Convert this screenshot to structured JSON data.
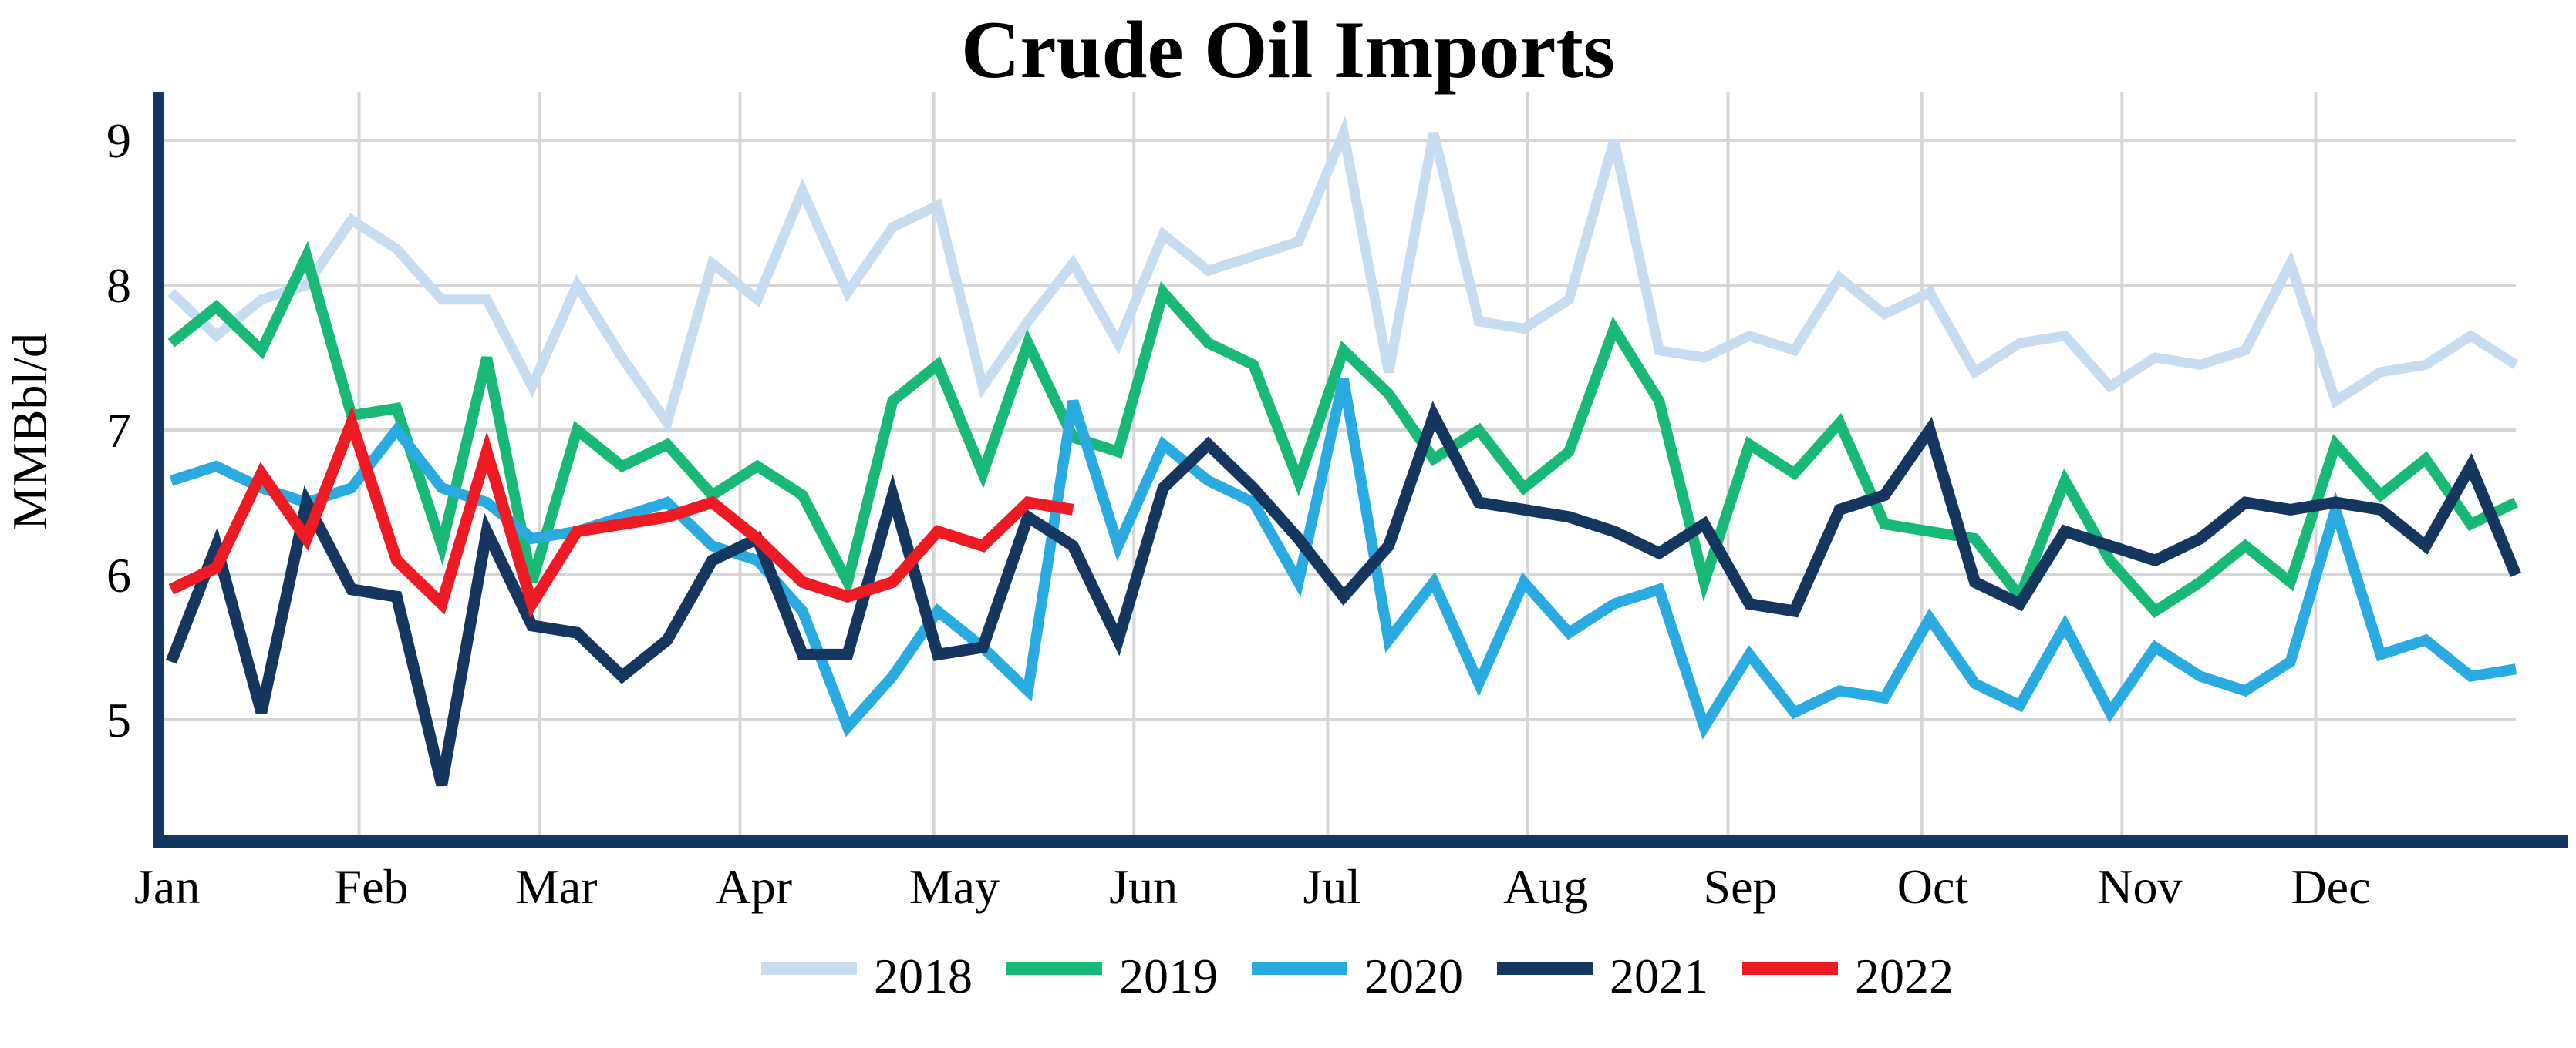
{
  "title": "Crude Oil Imports",
  "y_axis": {
    "label": "MMBbl/d",
    "ticks": [
      9,
      8,
      7,
      6,
      5
    ]
  },
  "x_axis": {
    "months": [
      "Jan",
      "Feb",
      "Mar",
      "Apr",
      "May",
      "Jun",
      "Jul",
      "Aug",
      "Sep",
      "Oct",
      "Nov",
      "Dec"
    ]
  },
  "legend": {
    "entries": [
      "2018",
      "2019",
      "2020",
      "2021",
      "2022"
    ]
  },
  "colors": {
    "series_2018": "#c6dcf1",
    "series_2019": "#18b877",
    "series_2020": "#29abe2",
    "series_2021": "#15365f",
    "series_2022": "#ee1b24",
    "axis": "#15365f",
    "grid": "#d6d6d6",
    "background": "#ffffff"
  },
  "chart_data": {
    "type": "line",
    "title": "Crude Oil Imports",
    "xlabel": "",
    "ylabel": "MMBbl/d",
    "ylim": [
      4.2,
      9.35
    ],
    "yticks": [
      5,
      6,
      7,
      8,
      9
    ],
    "grid": true,
    "legend_position": "bottom",
    "x_unit": "weekly points, Jan through Dec",
    "x_month_labels": [
      "Jan",
      "Feb",
      "Mar",
      "Apr",
      "May",
      "Jun",
      "Jul",
      "Aug",
      "Sep",
      "Oct",
      "Nov",
      "Dec"
    ],
    "series": [
      {
        "name": "2018",
        "color": "#c6dcf1",
        "values": [
          7.95,
          7.65,
          7.9,
          8.0,
          8.45,
          8.25,
          7.9,
          7.9,
          7.3,
          8.0,
          7.5,
          7.05,
          8.15,
          7.9,
          8.65,
          7.95,
          8.4,
          8.55,
          7.3,
          7.75,
          8.15,
          7.6,
          8.35,
          8.1,
          8.2,
          8.3,
          9.05,
          7.4,
          9.05,
          7.75,
          7.7,
          7.9,
          9.0,
          7.55,
          7.5,
          7.65,
          7.55,
          8.05,
          7.8,
          7.95,
          7.4,
          7.6,
          7.65,
          7.3,
          7.5,
          7.45,
          7.55,
          8.15,
          7.2,
          7.4,
          7.45,
          7.65,
          7.45
        ]
      },
      {
        "name": "2019",
        "color": "#18b877",
        "values": [
          7.6,
          7.85,
          7.55,
          8.2,
          7.1,
          7.15,
          6.2,
          7.5,
          5.95,
          7.0,
          6.75,
          6.9,
          6.55,
          6.75,
          6.55,
          5.95,
          7.2,
          7.45,
          6.7,
          7.6,
          6.95,
          6.85,
          7.95,
          7.6,
          7.45,
          6.65,
          7.55,
          7.25,
          6.8,
          7.0,
          6.6,
          6.85,
          7.7,
          7.2,
          5.95,
          6.9,
          6.7,
          7.05,
          6.35,
          6.3,
          6.25,
          5.85,
          6.65,
          6.1,
          5.75,
          5.95,
          6.2,
          5.95,
          6.9,
          6.55,
          6.8,
          6.35,
          6.5
        ]
      },
      {
        "name": "2020",
        "color": "#29abe2",
        "values": [
          6.65,
          6.75,
          6.6,
          6.5,
          6.6,
          7.0,
          6.6,
          6.5,
          6.25,
          6.3,
          6.4,
          6.5,
          6.2,
          6.1,
          5.75,
          4.95,
          5.3,
          5.75,
          5.5,
          5.2,
          7.2,
          6.2,
          6.9,
          6.65,
          6.5,
          5.95,
          7.35,
          5.55,
          5.95,
          5.25,
          5.95,
          5.6,
          5.8,
          5.9,
          4.95,
          5.45,
          5.05,
          5.2,
          5.15,
          5.7,
          5.25,
          5.1,
          5.65,
          5.05,
          5.5,
          5.3,
          5.2,
          5.4,
          6.45,
          5.45,
          5.55,
          5.3,
          5.35
        ]
      },
      {
        "name": "2021",
        "color": "#15365f",
        "values": [
          5.4,
          6.2,
          5.05,
          6.5,
          5.9,
          5.85,
          4.55,
          6.3,
          5.65,
          5.6,
          5.3,
          5.55,
          6.1,
          6.25,
          5.45,
          5.45,
          6.55,
          5.45,
          5.5,
          6.4,
          6.2,
          5.55,
          6.6,
          6.9,
          6.6,
          6.25,
          5.85,
          6.2,
          7.1,
          6.5,
          6.45,
          6.4,
          6.3,
          6.15,
          6.35,
          5.8,
          5.75,
          6.45,
          6.55,
          7.0,
          5.95,
          5.8,
          6.3,
          6.2,
          6.1,
          6.25,
          6.5,
          6.45,
          6.5,
          6.45,
          6.2,
          6.75,
          6.0
        ]
      },
      {
        "name": "2022",
        "color": "#ee1b24",
        "values": [
          5.9,
          6.05,
          6.7,
          6.25,
          7.05,
          6.1,
          5.8,
          6.85,
          5.8,
          6.3,
          6.35,
          6.4,
          6.5,
          6.25,
          5.95,
          5.85,
          5.95,
          6.3,
          6.2,
          6.5,
          6.45
        ]
      }
    ]
  }
}
